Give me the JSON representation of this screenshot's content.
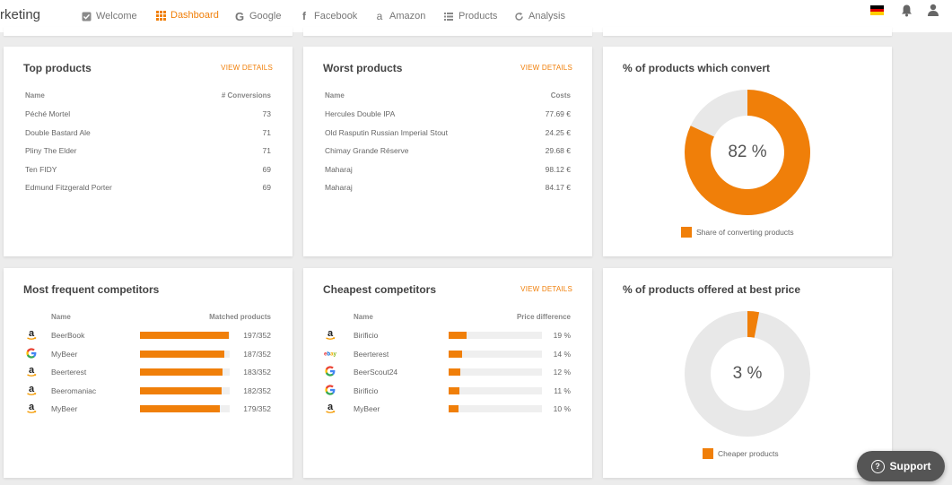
{
  "brand": "rketing",
  "nav": [
    {
      "label": "Welcome",
      "icon": "checkbox-icon"
    },
    {
      "label": "Dashboard",
      "icon": "grid-icon",
      "active": true
    },
    {
      "label": "Google",
      "icon": "google-icon"
    },
    {
      "label": "Facebook",
      "icon": "facebook-icon"
    },
    {
      "label": "Amazon",
      "icon": "amazon-icon"
    },
    {
      "label": "Products",
      "icon": "list-icon"
    },
    {
      "label": "Analysis",
      "icon": "refresh-icon"
    }
  ],
  "colors": {
    "accent": "#f07f09",
    "track": "#e8e8e8"
  },
  "top_products": {
    "title": "Top products",
    "view": "VIEW DETAILS",
    "col_name": "Name",
    "col_value": "# Conversions",
    "rows": [
      {
        "name": "Péché Mortel",
        "value": "73"
      },
      {
        "name": "Double Bastard Ale",
        "value": "71"
      },
      {
        "name": "Pliny The Elder",
        "value": "71"
      },
      {
        "name": "Ten FIDY",
        "value": "69"
      },
      {
        "name": "Edmund Fitzgerald Porter",
        "value": "69"
      }
    ]
  },
  "worst_products": {
    "title": "Worst products",
    "view": "VIEW DETAILS",
    "col_name": "Name",
    "col_value": "Costs",
    "rows": [
      {
        "name": "Hercules Double IPA",
        "value": "77.69 €"
      },
      {
        "name": "Old Rasputin Russian Imperial Stout",
        "value": "24.25 €"
      },
      {
        "name": "Chimay Grande Réserve",
        "value": "29.68 €"
      },
      {
        "name": "Maharaj",
        "value": "98.12 €"
      },
      {
        "name": "Maharaj",
        "value": "84.17 €"
      }
    ]
  },
  "convert": {
    "title": "% of products which convert",
    "percent": 82,
    "label": "82 %",
    "legend": "Share of converting products"
  },
  "competitors": {
    "title": "Most frequent competitors",
    "col_name": "Name",
    "col_value": "Matched products",
    "rows": [
      {
        "logo": "amazon-icon",
        "name": "BeerBook",
        "fraction": 0.5597,
        "value": "197/352"
      },
      {
        "logo": "google-icon",
        "name": "MyBeer",
        "fraction": 0.5313,
        "value": "187/352"
      },
      {
        "logo": "amazon-icon",
        "name": "Beerterest",
        "fraction": 0.5199,
        "value": "183/352"
      },
      {
        "logo": "amazon-icon",
        "name": "Beeromaniac",
        "fraction": 0.517,
        "value": "182/352"
      },
      {
        "logo": "amazon-icon",
        "name": "MyBeer",
        "fraction": 0.5085,
        "value": "179/352"
      }
    ]
  },
  "cheapest": {
    "title": "Cheapest competitors",
    "view": "VIEW DETAILS",
    "col_name": "Name",
    "col_value": "Price difference",
    "rows": [
      {
        "logo": "amazon-icon",
        "name": "Birificio",
        "fraction": 0.19,
        "value": "19 %"
      },
      {
        "logo": "ebay-icon",
        "name": "Beerterest",
        "fraction": 0.14,
        "value": "14 %"
      },
      {
        "logo": "google-icon",
        "name": "BeerScout24",
        "fraction": 0.12,
        "value": "12 %"
      },
      {
        "logo": "google-icon",
        "name": "Birificio",
        "fraction": 0.11,
        "value": "11 %"
      },
      {
        "logo": "amazon-icon",
        "name": "MyBeer",
        "fraction": 0.1,
        "value": "10 %"
      }
    ]
  },
  "best_price": {
    "title": "% of products offered at best price",
    "percent": 3,
    "label": "3 %",
    "legend": "Cheaper products"
  },
  "support": "Support"
}
